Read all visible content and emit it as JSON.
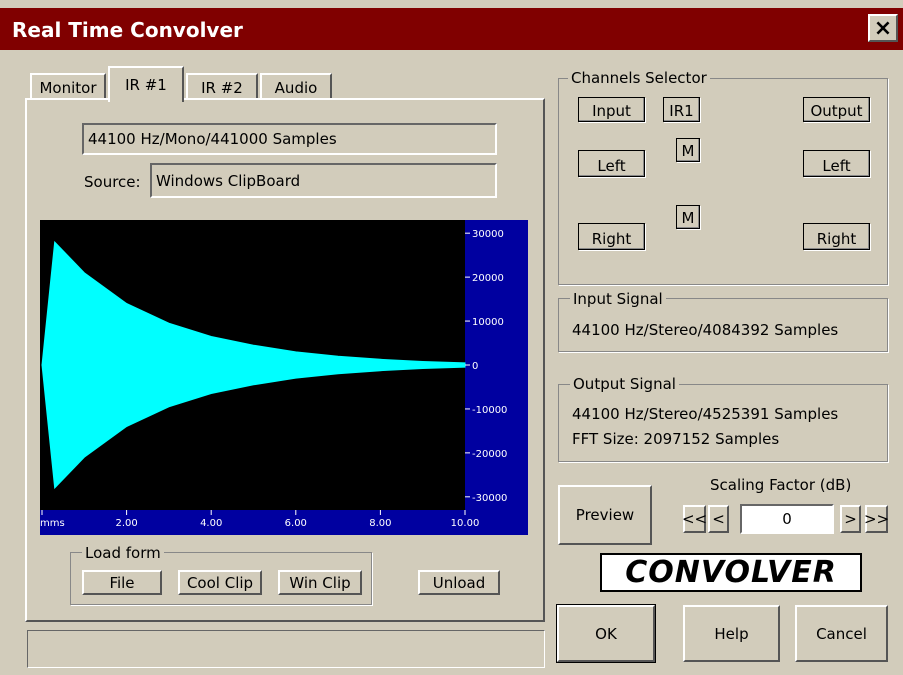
{
  "window": {
    "title": "Real Time Convolver",
    "close": "×"
  },
  "tabs": [
    "Monitor",
    "IR #1",
    "IR #2",
    "Audio"
  ],
  "ir_panel": {
    "format": "44100 Hz/Mono/441000 Samples",
    "source_label": "Source:",
    "source": "Windows ClipBoard",
    "load_form": {
      "title": "Load form",
      "buttons": [
        "File",
        "Cool Clip",
        "Win Clip"
      ]
    },
    "unload": "Unload"
  },
  "chart_data": {
    "type": "area",
    "color": "#00ffff",
    "x": [
      0,
      0.3,
      1,
      2,
      3,
      4,
      5,
      6,
      7,
      8,
      9,
      10
    ],
    "values": [
      0,
      28000,
      21000,
      14000,
      9500,
      6500,
      4500,
      3000,
      2000,
      1300,
      800,
      500
    ],
    "xlim": [
      0,
      10
    ],
    "xticks": [
      {
        "value": 0,
        "label": "mms"
      },
      {
        "value": 2,
        "label": "2.00"
      },
      {
        "value": 4,
        "label": "4.00"
      },
      {
        "value": 6,
        "label": "6.00"
      },
      {
        "value": 8,
        "label": "8.00"
      },
      {
        "value": 10,
        "label": "10.00"
      }
    ],
    "ylim": [
      -33000,
      33000
    ],
    "yticks": [
      30000,
      20000,
      10000,
      0,
      -10000,
      -20000,
      -30000
    ]
  },
  "channels": {
    "title": "Channels Selector",
    "input": "Input",
    "ir": "IR1",
    "output": "Output",
    "mono": [
      "M",
      "M"
    ],
    "left": [
      "Left",
      "Left"
    ],
    "right": [
      "Right",
      "Right"
    ]
  },
  "input_signal": {
    "title": "Input Signal",
    "text": "44100 Hz/Stereo/4084392 Samples"
  },
  "output_signal": {
    "title": "Output Signal",
    "lines": [
      "44100 Hz/Stereo/4525391 Samples",
      "FFT Size: 2097152 Samples"
    ]
  },
  "scaling": {
    "label": "Scaling Factor (dB)",
    "buttons": [
      "<<",
      "<",
      ">",
      ">>"
    ],
    "value": "0"
  },
  "buttons": {
    "preview": "Preview",
    "ok": "OK",
    "help": "Help",
    "cancel": "Cancel"
  },
  "logo": "CONVOLVER"
}
